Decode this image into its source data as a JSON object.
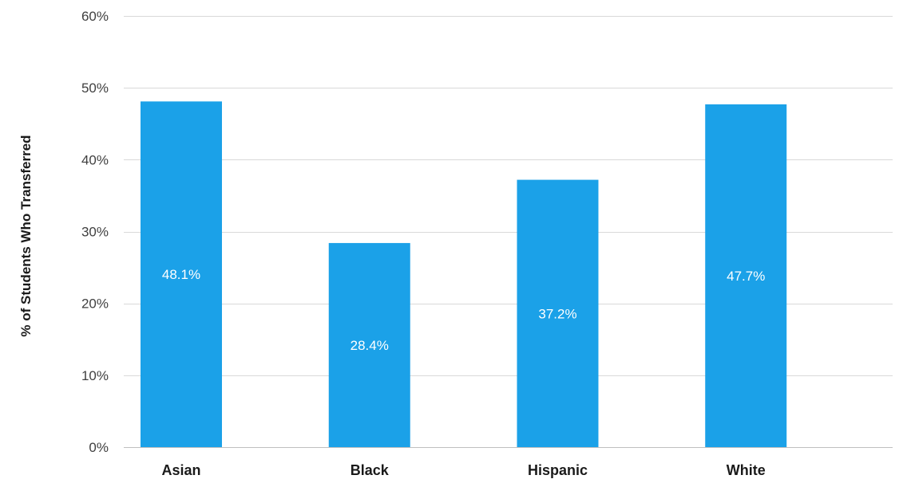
{
  "chart_data": {
    "type": "bar",
    "categories": [
      "Asian",
      "Black",
      "Hispanic",
      "White"
    ],
    "values": [
      48.1,
      28.4,
      37.2,
      47.7
    ],
    "data_labels": [
      "48.1%",
      "28.4%",
      "37.2%",
      "47.7%"
    ],
    "title": "",
    "xlabel": "",
    "ylabel": "% of Students Who Transferred",
    "ylim": [
      0,
      60
    ],
    "y_ticks": [
      0,
      10,
      20,
      30,
      40,
      50,
      60
    ],
    "y_tick_labels": [
      "0%",
      "10%",
      "20%",
      "30%",
      "40%",
      "50%",
      "60%"
    ],
    "grid": true,
    "legend": "none",
    "bar_color": "#1ba1e8",
    "grid_color": "#d9d9d9"
  }
}
